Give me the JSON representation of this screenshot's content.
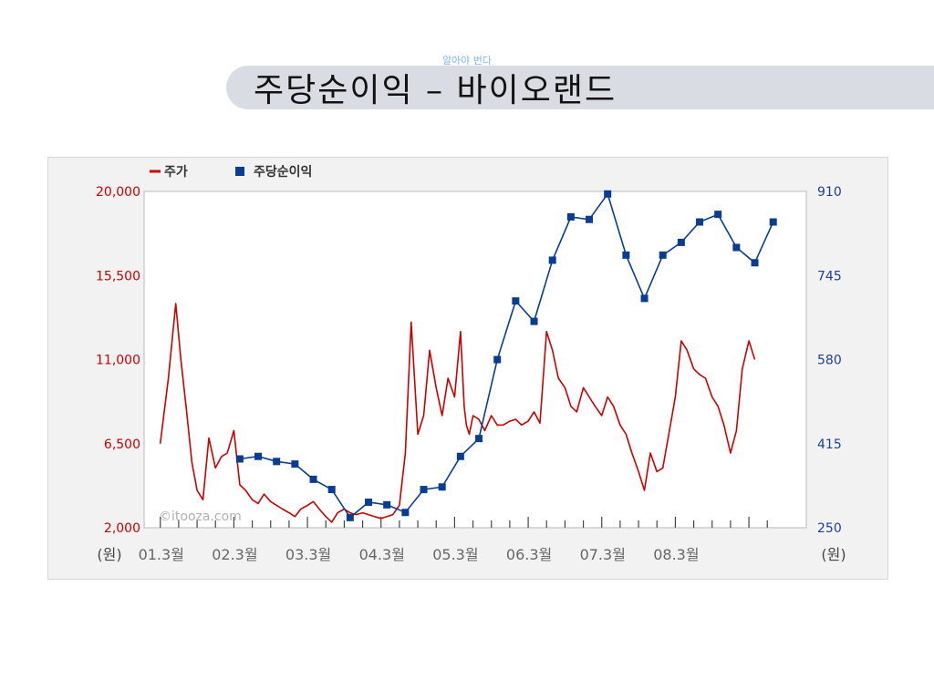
{
  "header": {
    "small_text": "알아야 번다",
    "title": "주당순이익 – 바이오랜드"
  },
  "chart_data": {
    "type": "line",
    "title": "",
    "xlabel": "",
    "ylabel_left": "(원)",
    "ylabel_right": "(원)",
    "watermark": "©itooza.com",
    "legend_position": "top-left",
    "categories": [
      "01.3월",
      "02.3월",
      "03.3월",
      "04.3월",
      "05.3월",
      "06.3월",
      "07.3월",
      "08.3월"
    ],
    "ylim_left": [
      2000,
      20000
    ],
    "ylim_right": [
      250,
      910
    ],
    "yticks_left": [
      "20,000",
      "15,500",
      "11,000",
      "6,500",
      "2,000"
    ],
    "yticks_right": [
      "910",
      "745",
      "580",
      "415",
      "250"
    ],
    "colors": {
      "price": "#cc0000",
      "eps": "#0a3d91",
      "left_axis_text": "#cc0000",
      "right_axis_text": "#1f3f99"
    },
    "series": [
      {
        "name": "주가",
        "axis": "left",
        "x": [
          2001.17,
          2001.28,
          2001.38,
          2001.45,
          2001.52,
          2001.6,
          2001.67,
          2001.75,
          2001.83,
          2001.92,
          2002.0,
          2002.08,
          2002.17,
          2002.25,
          2002.33,
          2002.42,
          2002.5,
          2002.58,
          2002.67,
          2002.75,
          2002.83,
          2002.92,
          2003.0,
          2003.08,
          2003.17,
          2003.25,
          2003.33,
          2003.42,
          2003.5,
          2003.58,
          2003.67,
          2003.75,
          2003.83,
          2003.92,
          2004.0,
          2004.08,
          2004.17,
          2004.25,
          2004.33,
          2004.42,
          2004.5,
          2004.58,
          2004.67,
          2004.75,
          2004.83,
          2004.92,
          2005.0,
          2005.08,
          2005.17,
          2005.25,
          2005.3,
          2005.33,
          2005.37,
          2005.42,
          2005.5,
          2005.58,
          2005.67,
          2005.75,
          2005.83,
          2005.92,
          2006.0,
          2006.08,
          2006.17,
          2006.25,
          2006.33,
          2006.42,
          2006.5,
          2006.58,
          2006.67,
          2006.75,
          2006.83,
          2006.92,
          2007.0,
          2007.08,
          2007.17,
          2007.25,
          2007.33,
          2007.42,
          2007.5,
          2007.58,
          2007.67,
          2007.75,
          2007.83,
          2007.92,
          2008.0,
          2008.08,
          2008.17,
          2008.25,
          2008.33,
          2008.42,
          2008.5,
          2008.58,
          2008.67,
          2008.75,
          2008.83,
          2008.92,
          2009.0,
          2009.08,
          2009.17,
          2009.25
        ],
        "values": [
          6500,
          10000,
          14000,
          11000,
          8500,
          5500,
          4000,
          3500,
          6800,
          5200,
          5800,
          6000,
          7200,
          4300,
          4000,
          3500,
          3300,
          3800,
          3400,
          3200,
          3000,
          2800,
          2600,
          3000,
          3200,
          3400,
          3000,
          2600,
          2300,
          2800,
          3000,
          2800,
          2700,
          2800,
          2700,
          2600,
          2500,
          2600,
          2700,
          3200,
          6000,
          13000,
          7000,
          8000,
          11500,
          9500,
          8000,
          10000,
          9000,
          12500,
          8500,
          7500,
          7000,
          8000,
          7800,
          7200,
          8000,
          7500,
          7500,
          7700,
          7800,
          7500,
          7700,
          8200,
          7600,
          12500,
          11500,
          10000,
          9500,
          8500,
          8200,
          9500,
          9000,
          8500,
          8000,
          9000,
          8500,
          7500,
          7000,
          6000,
          5000,
          4000,
          6000,
          5000,
          5200,
          7000,
          9000,
          12000,
          11500,
          10500,
          10200,
          10000,
          9000,
          8500,
          7500,
          6000,
          7200,
          10500,
          12000,
          11000
        ],
        "values_note": ""
      },
      {
        "name": "주당순이익",
        "axis": "right",
        "x": [
          2002.25,
          2002.5,
          2002.75,
          2003.0,
          2003.25,
          2003.5,
          2003.75,
          2004.0,
          2004.25,
          2004.5,
          2004.75,
          2005.0,
          2005.25,
          2005.5,
          2005.75,
          2006.0,
          2006.25,
          2006.5,
          2006.75,
          2007.0,
          2007.25,
          2007.5,
          2007.75,
          2008.0,
          2008.25,
          2008.5,
          2008.75,
          2009.0,
          2009.25,
          2009.5
        ],
        "values": [
          385,
          390,
          380,
          375,
          345,
          325,
          270,
          300,
          295,
          280,
          325,
          330,
          390,
          425,
          580,
          695,
          655,
          775,
          860,
          855,
          905,
          785,
          700,
          785,
          810,
          850,
          865,
          800,
          770,
          850
        ]
      }
    ]
  }
}
